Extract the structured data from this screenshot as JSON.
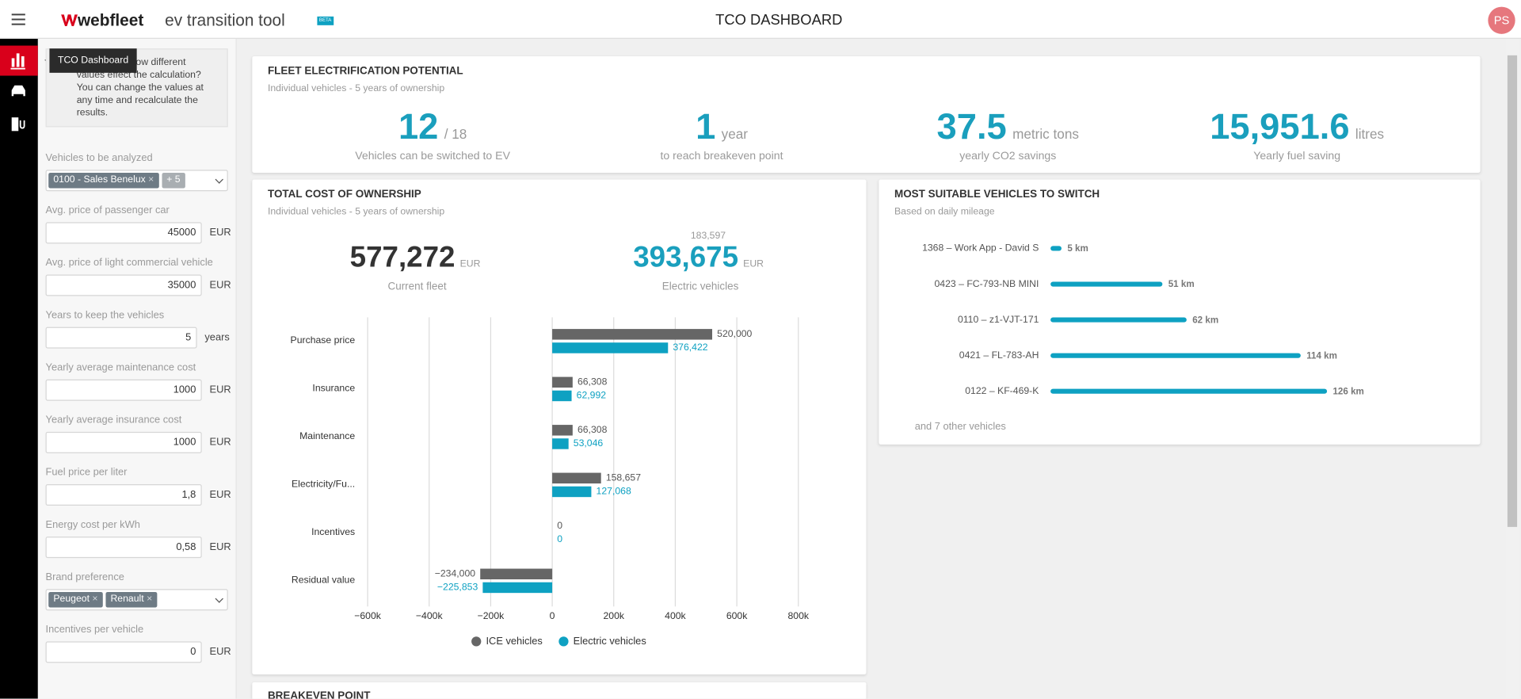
{
  "header": {
    "logo": "webfleet",
    "app_title": "ev transition tool",
    "badge": "BETA",
    "page_title": "TCO DASHBOARD",
    "avatar": "PS"
  },
  "nav": {
    "tooltip": "TCO Dashboard"
  },
  "sidebar": {
    "info": "ow different values effect the calculation? You can change the values at any time and recalculate the results.",
    "fields": [
      {
        "label": "Vehicles to be analyzed",
        "tags": [
          "0100 - Sales Benelux",
          "+ 5"
        ]
      },
      {
        "label": "Avg. price of passenger car",
        "value": "45000",
        "unit": "EUR"
      },
      {
        "label": "Avg. price of light commercial vehicle",
        "value": "35000",
        "unit": "EUR"
      },
      {
        "label": "Years to keep the vehicles",
        "value": "5",
        "unit": "years"
      },
      {
        "label": "Yearly average maintenance cost",
        "value": "1000",
        "unit": "EUR"
      },
      {
        "label": "Yearly average insurance cost",
        "value": "1000",
        "unit": "EUR"
      },
      {
        "label": "Fuel price per liter",
        "value": "1,8",
        "unit": "EUR"
      },
      {
        "label": "Energy cost per kWh",
        "value": "0,58",
        "unit": "EUR"
      },
      {
        "label": "Brand preference",
        "tags": [
          "Peugeot",
          "Renault"
        ]
      },
      {
        "label": "Incentives per vehicle",
        "value": "0",
        "unit": "EUR"
      }
    ]
  },
  "potential": {
    "title": "FLEET ELECTRIFICATION POTENTIAL",
    "subtitle": "Individual vehicles - 5 years of ownership",
    "kpis": [
      {
        "value": "12",
        "unit": "/ 18",
        "label": "Vehicles can be switched to EV"
      },
      {
        "value": "1",
        "unit": "year",
        "label": "to reach breakeven point"
      },
      {
        "value": "37.5",
        "unit": "metric tons",
        "label": "yearly CO2 savings"
      },
      {
        "value": "15,951.6",
        "unit": "litres",
        "label": "Yearly fuel saving"
      }
    ]
  },
  "tco": {
    "title": "TOTAL COST OF OWNERSHIP",
    "subtitle": "Individual vehicles - 5 years of ownership",
    "current": {
      "value": "577,272",
      "unit": "EUR",
      "label": "Current fleet"
    },
    "electric": {
      "delta": "183,597",
      "value": "393,675",
      "unit": "EUR",
      "label": "Electric vehicles"
    },
    "chart_data": {
      "type": "bar",
      "orientation": "horizontal",
      "categories": [
        "Purchase price",
        "Insurance",
        "Maintenance",
        "Electricity/Fu...",
        "Incentives",
        "Residual value"
      ],
      "series": [
        {
          "name": "ICE vehicles",
          "color": "#666666",
          "values": [
            520000,
            66308,
            66308,
            158657,
            0,
            -234000
          ],
          "value_labels": [
            "520,000",
            "66,308",
            "66,308",
            "158,657",
            "0",
            "−234,000"
          ]
        },
        {
          "name": "Electric vehicles",
          "color": "#0ea1c2",
          "values": [
            376422,
            62992,
            53046,
            127068,
            0,
            -225853
          ],
          "value_labels": [
            "376,422",
            "62,992",
            "53,046",
            "127,068",
            "0",
            "−225,853"
          ]
        }
      ],
      "xlim": [
        -600000,
        800000
      ],
      "xticks": [
        {
          "value": -600000,
          "label": "−600k"
        },
        {
          "value": -400000,
          "label": "−400k"
        },
        {
          "value": -200000,
          "label": "−200k"
        },
        0,
        {
          "value": 200000,
          "label": "200k"
        },
        {
          "value": 400000,
          "label": "400k"
        },
        {
          "value": 600000,
          "label": "600k"
        },
        {
          "value": 800000,
          "label": "800k"
        }
      ],
      "grid": true
    }
  },
  "suitable": {
    "title": "MOST SUITABLE VEHICLES TO SWITCH",
    "subtitle": "Based on daily mileage",
    "chart_data": {
      "type": "bar",
      "orientation": "horizontal",
      "color": "#0ea1c2",
      "categories": [
        "1368 – Work App - David S",
        "0423 – FC-793-NB MINI",
        "0110 – z1-VJT-171",
        "0421 – FL-783-AH",
        "0122 – KF-469-K"
      ],
      "values": [
        5,
        51,
        62,
        114,
        126
      ],
      "value_labels": [
        "5 km",
        "51 km",
        "62 km",
        "114 km",
        "126 km"
      ]
    },
    "footer": "and 7 other vehicles"
  },
  "breakeven": {
    "title": "BREAKEVEN POINT"
  }
}
